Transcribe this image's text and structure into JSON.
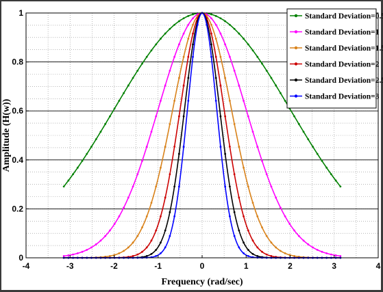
{
  "chart_data": {
    "type": "line",
    "title": "",
    "xlabel": "Frequency (rad/sec)",
    "ylabel": "Amplitude (H(w))",
    "xlim": [
      -4,
      4
    ],
    "ylim": [
      0,
      1
    ],
    "xticks": [
      -4,
      -3,
      -2,
      -1,
      0,
      1,
      2,
      3,
      4
    ],
    "yticks": [
      0,
      0.2,
      0.4,
      0.6,
      0.8,
      1
    ],
    "x_domain": [
      -3.1416,
      3.1416
    ],
    "grid": true,
    "legend_position": "top-right",
    "series": [
      {
        "name": "Standard Deviation=0.5",
        "color": "#008000",
        "sigma": 0.5,
        "x": [
          -3.14,
          -2.5,
          -2,
          -1.5,
          -1,
          -0.5,
          0,
          0.5,
          1,
          1.5,
          2,
          2.5,
          3.14
        ],
        "y": [
          0.291,
          0.458,
          0.607,
          0.755,
          0.882,
          0.969,
          1,
          0.969,
          0.882,
          0.755,
          0.607,
          0.458,
          0.291
        ]
      },
      {
        "name": "Standard Deviation=1",
        "color": "#ff00ff",
        "sigma": 1,
        "x": [
          -3.14,
          -2.5,
          -2,
          -1.5,
          -1,
          -0.5,
          0,
          0.5,
          1,
          1.5,
          2,
          2.5,
          3.14
        ],
        "y": [
          0.007,
          0.044,
          0.135,
          0.325,
          0.607,
          0.882,
          1,
          0.882,
          0.607,
          0.325,
          0.135,
          0.044,
          0.007
        ]
      },
      {
        "name": "Standard Deviation=1.5",
        "color": "#d9821a",
        "sigma": 1.5,
        "x": [
          -3.14,
          -2.5,
          -2,
          -1.5,
          -1,
          -0.5,
          0,
          0.5,
          1,
          1.5,
          2,
          2.5,
          3.14
        ],
        "y": [
          0,
          0.001,
          0.011,
          0.08,
          0.325,
          0.755,
          1,
          0.755,
          0.325,
          0.08,
          0.011,
          0.001,
          0
        ]
      },
      {
        "name": "Standard Deviation=2",
        "color": "#cc0000",
        "sigma": 2,
        "x": [
          -3.14,
          -2,
          -1.5,
          -1,
          -0.5,
          0,
          0.5,
          1,
          1.5,
          2,
          3.14
        ],
        "y": [
          0,
          0,
          0.011,
          0.135,
          0.607,
          1,
          0.607,
          0.135,
          0.011,
          0,
          0
        ]
      },
      {
        "name": "Standard Deviation=2.5",
        "color": "#000000",
        "sigma": 2.5,
        "x": [
          -3.14,
          -2,
          -1.5,
          -1,
          -0.5,
          0,
          0.5,
          1,
          1.5,
          2,
          3.14
        ],
        "y": [
          0,
          0,
          0.001,
          0.044,
          0.458,
          1,
          0.458,
          0.044,
          0.001,
          0,
          0
        ]
      },
      {
        "name": "Standard Deviation=3",
        "color": "#0000ff",
        "sigma": 3,
        "x": [
          -3.14,
          -2,
          -1.5,
          -1,
          -0.5,
          0,
          0.5,
          1,
          1.5,
          2,
          3.14
        ],
        "y": [
          0,
          0,
          0,
          0.011,
          0.325,
          1,
          0.325,
          0.011,
          0,
          0,
          0
        ]
      }
    ]
  }
}
